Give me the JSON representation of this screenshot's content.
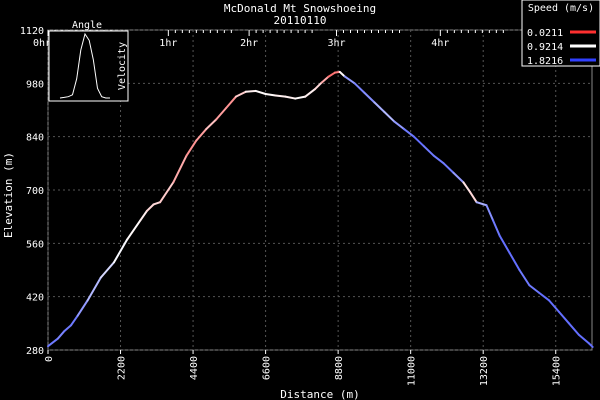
{
  "chart_data": {
    "type": "line",
    "title": "McDonald Mt Snowshoeing",
    "subtitle": "20110110",
    "xlabel": "Distance (m)",
    "ylabel": "Elevation (m)",
    "xlim": [
      0,
      16500
    ],
    "ylim": [
      280,
      1120
    ],
    "x_ticks": [
      "0",
      "2200",
      "4400",
      "6600",
      "8800",
      "11000",
      "13200",
      "15400"
    ],
    "x_tick_values": [
      0,
      2200,
      4400,
      6600,
      8800,
      11000,
      13200,
      15400
    ],
    "y_ticks": [
      "280",
      "420",
      "560",
      "700",
      "840",
      "980",
      "1120"
    ],
    "y_tick_values": [
      280,
      420,
      560,
      700,
      840,
      980,
      1120
    ],
    "time_ticks": [
      "0hr",
      "1hr",
      "2hr",
      "3hr",
      "4hr"
    ],
    "time_tick_distances": [
      0,
      3650,
      6100,
      8750,
      11900
    ],
    "grid": true,
    "legend_title": "Speed (m/s)",
    "legend": [
      {
        "label": "0.0211",
        "color": "#ff3030"
      },
      {
        "label": "0.9214",
        "color": "#ffffff"
      },
      {
        "label": "1.8216",
        "color": "#3040ff"
      }
    ],
    "series": [
      {
        "x": [
          0,
          300,
          500,
          700,
          900,
          1200,
          1600,
          2000,
          2400,
          2800,
          3000,
          3200,
          3400,
          3800,
          4200,
          4500,
          4800,
          5100,
          5400,
          5700,
          6000,
          6300,
          6600,
          6900,
          7200,
          7500,
          7800,
          8100,
          8300,
          8500,
          8700,
          8850,
          9000,
          9300,
          9600,
          9900,
          10200,
          10500,
          10800,
          11100,
          11400,
          11700,
          12000,
          12300,
          12600,
          12800,
          13000,
          13300,
          13500,
          13700,
          14000,
          14300,
          14600,
          14900,
          15200,
          15500,
          15800,
          16100,
          16400,
          16520
        ],
        "y": [
          290,
          310,
          330,
          345,
          370,
          410,
          470,
          510,
          570,
          620,
          645,
          662,
          668,
          720,
          790,
          830,
          860,
          885,
          915,
          945,
          958,
          960,
          952,
          948,
          945,
          940,
          945,
          965,
          982,
          997,
          1008,
          1010,
          998,
          980,
          955,
          930,
          905,
          880,
          860,
          840,
          815,
          790,
          770,
          745,
          720,
          695,
          668,
          660,
          620,
          580,
          535,
          490,
          450,
          430,
          410,
          380,
          350,
          320,
          298,
          288
        ],
        "speed": [
          1.6,
          1.5,
          1.5,
          1.6,
          1.5,
          1.3,
          1.2,
          1.0,
          0.9,
          0.9,
          0.8,
          0.7,
          0.8,
          0.6,
          0.5,
          0.4,
          0.6,
          0.7,
          0.3,
          0.6,
          0.8,
          0.9,
          0.9,
          0.9,
          0.8,
          0.9,
          0.9,
          0.8,
          0.7,
          0.4,
          0.2,
          0.5,
          1.3,
          1.5,
          1.5,
          1.4,
          1.2,
          1.3,
          1.5,
          1.6,
          1.6,
          1.5,
          1.6,
          1.5,
          1.3,
          0.3,
          1.2,
          1.4,
          1.5,
          1.6,
          1.6,
          1.6,
          1.5,
          1.6,
          1.6,
          1.6,
          1.6,
          1.6,
          1.6,
          1.6
        ]
      }
    ],
    "inset": {
      "title": "Angle",
      "ylabel": "Velocity",
      "curve": [
        0.0,
        0.01,
        0.02,
        0.05,
        0.3,
        0.75,
        1.0,
        0.9,
        0.6,
        0.15,
        0.02,
        0.0,
        0.0
      ]
    }
  }
}
